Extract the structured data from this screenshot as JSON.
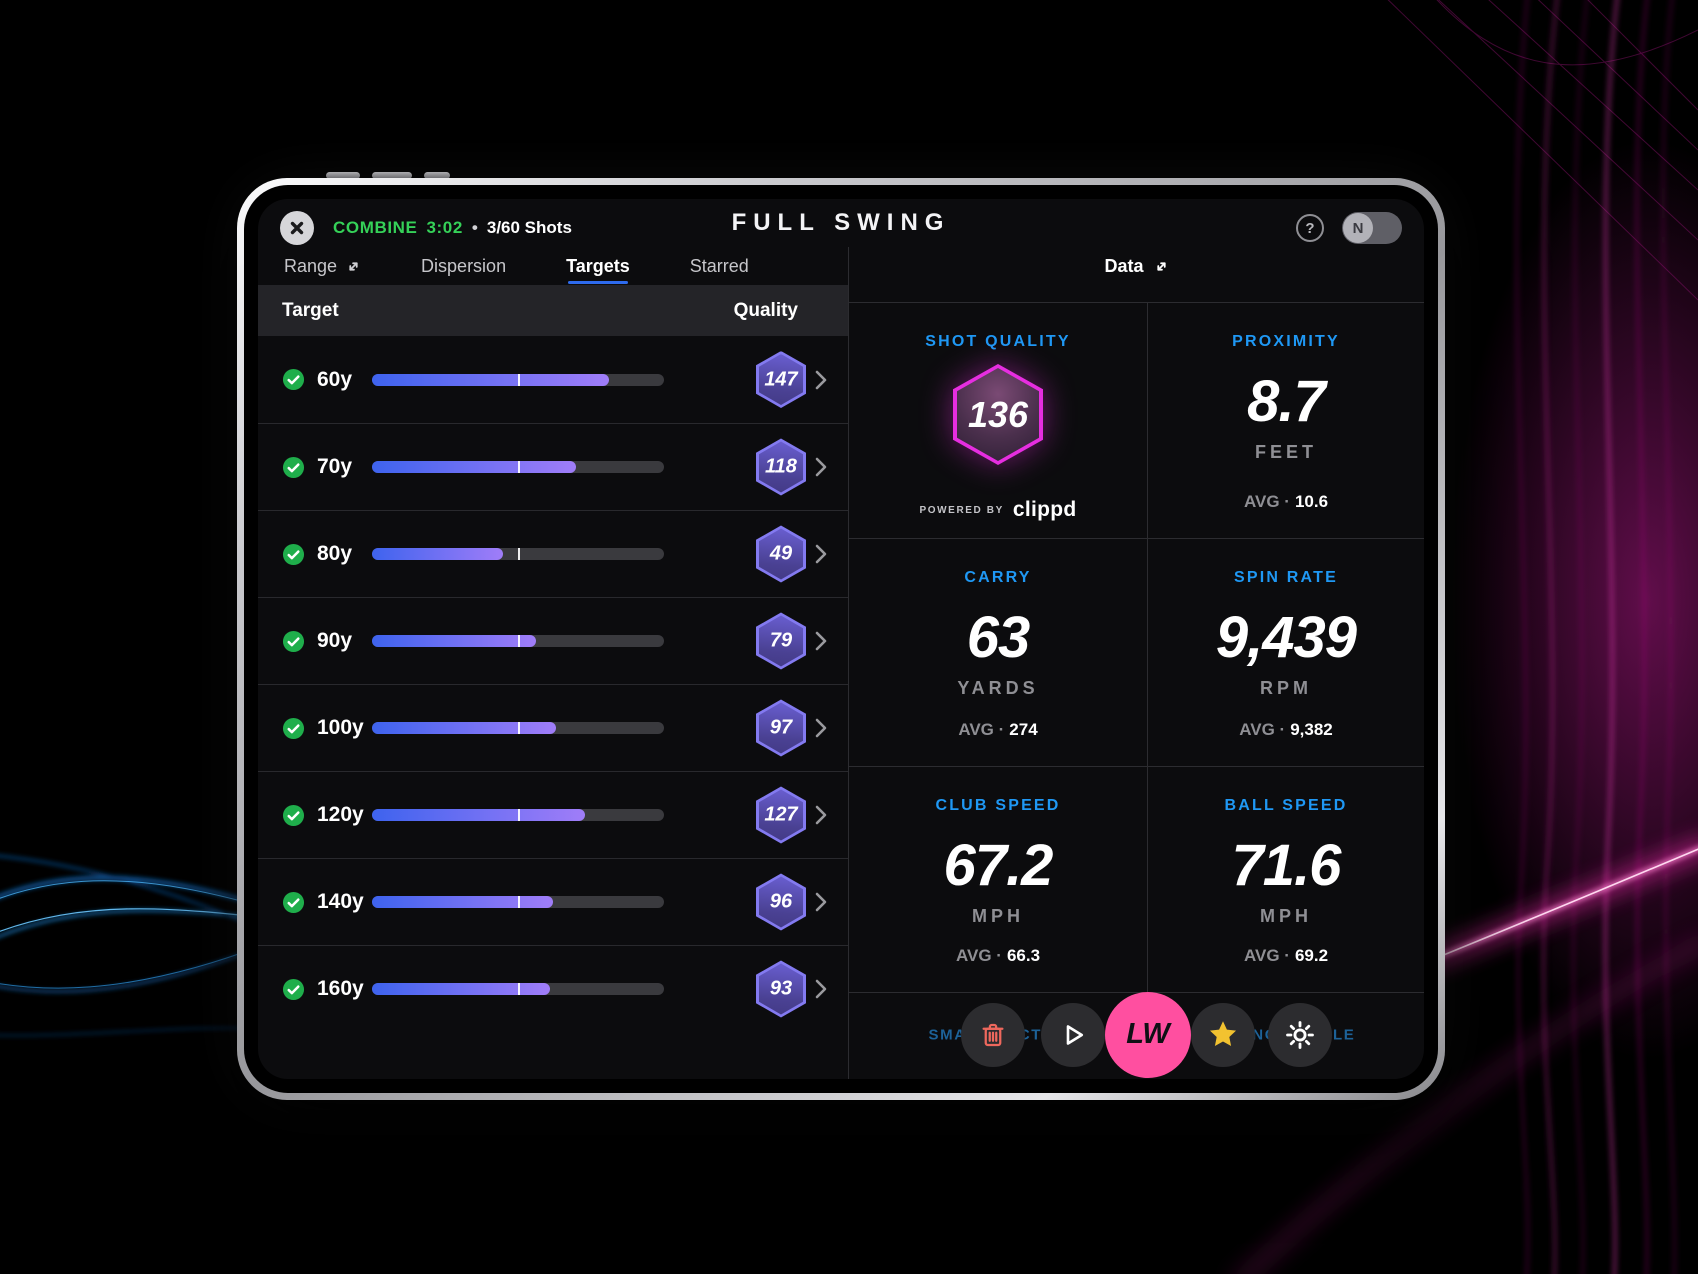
{
  "app": {
    "brand": "FULL SWING"
  },
  "session": {
    "label": "COMBINE",
    "time": "3:02",
    "separator": "•",
    "shots": "3/60 Shots"
  },
  "topbar": {
    "help": "?",
    "avatar_initial": "N"
  },
  "tabs": {
    "items": [
      {
        "label": "Range"
      },
      {
        "label": "Dispersion"
      },
      {
        "label": "Targets"
      },
      {
        "label": "Starred"
      }
    ],
    "active": "Targets",
    "data_label": "Data"
  },
  "targets_table": {
    "col_target": "Target",
    "col_quality": "Quality",
    "rows": [
      {
        "target": "60y",
        "completed": true,
        "progress_pct": 81,
        "quality": "147"
      },
      {
        "target": "70y",
        "completed": true,
        "progress_pct": 70,
        "quality": "118"
      },
      {
        "target": "80y",
        "completed": true,
        "progress_pct": 45,
        "quality": "49"
      },
      {
        "target": "90y",
        "completed": true,
        "progress_pct": 56,
        "quality": "79"
      },
      {
        "target": "100y",
        "completed": true,
        "progress_pct": 63,
        "quality": "97"
      },
      {
        "target": "120y",
        "completed": true,
        "progress_pct": 73,
        "quality": "127"
      },
      {
        "target": "140y",
        "completed": true,
        "progress_pct": 62,
        "quality": "96"
      },
      {
        "target": "160y",
        "completed": true,
        "progress_pct": 61,
        "quality": "93"
      }
    ]
  },
  "data_panel": {
    "shot_quality": {
      "label": "SHOT QUALITY",
      "value": "136",
      "powered_by": "POWERED BY",
      "brand": "clippd"
    },
    "stats": [
      {
        "label": "PROXIMITY",
        "value": "8.7",
        "unit": "FEET",
        "avg_label": "AVG ·",
        "avg_value": "10.6"
      },
      {
        "label": "CARRY",
        "value": "63",
        "unit": "YARDS",
        "avg_label": "AVG ·",
        "avg_value": "274"
      },
      {
        "label": "SPIN RATE",
        "value": "9,439",
        "unit": "RPM",
        "avg_label": "AVG ·",
        "avg_value": "9,382"
      },
      {
        "label": "CLUB SPEED",
        "value": "67.2",
        "unit": "MPH",
        "avg_label": "AVG ·",
        "avg_value": "66.3"
      },
      {
        "label": "BALL SPEED",
        "value": "71.6",
        "unit": "MPH",
        "avg_label": "AVG ·",
        "avg_value": "69.2"
      }
    ],
    "partially_hidden_labels": [
      "SMASH FACTOR",
      "LAUNCH ANGLE"
    ],
    "actions": {
      "club": "LW"
    }
  },
  "colors": {
    "accent_blue": "#1f98f4",
    "accent_green": "#35d158",
    "tab_underline": "#2e6bee",
    "bar_start": "#3e63ee",
    "bar_end": "#a07df8",
    "badge_border": "#837af0",
    "sq_magenta": "#e62ee0",
    "club_pink": "#ff4fa0",
    "trash_red": "#ee685d",
    "star_yellow": "#f2c230"
  }
}
